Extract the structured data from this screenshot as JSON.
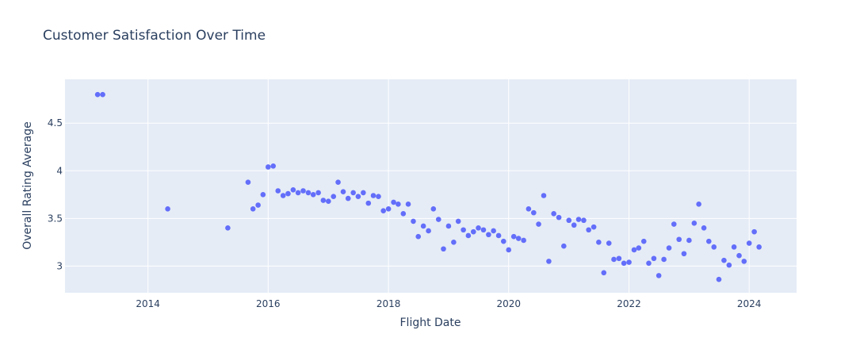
{
  "chart_data": {
    "type": "scatter",
    "title": "Customer Satisfaction Over Time",
    "xlabel": "Flight Date",
    "ylabel": "Overall Rating Average",
    "x_ticks": [
      "2014",
      "2016",
      "2018",
      "2020",
      "2022",
      "2024"
    ],
    "y_ticks": [
      "3",
      "3.5",
      "4",
      "4.5"
    ],
    "xlim": [
      "2012-08-15",
      "2024-10-15"
    ],
    "ylim": [
      2.72,
      4.96
    ],
    "grid": true,
    "legend": "none",
    "colors": {
      "marker": "#636efa",
      "plot_background": "#e5ecf6",
      "grid": "#ffffff",
      "text": "#2a3f5f"
    },
    "series": [
      {
        "x": [
          "2013-03",
          "2013-04",
          "2014-05",
          "2015-05",
          "2015-09",
          "2015-10",
          "2015-11",
          "2015-12",
          "2016-01",
          "2016-02",
          "2016-03",
          "2016-04",
          "2016-05",
          "2016-06",
          "2016-07",
          "2016-08",
          "2016-09",
          "2016-10",
          "2016-11",
          "2016-12",
          "2017-01",
          "2017-02",
          "2017-03",
          "2017-04",
          "2017-05",
          "2017-06",
          "2017-07",
          "2017-08",
          "2017-09",
          "2017-10",
          "2017-11",
          "2017-12",
          "2018-01",
          "2018-02",
          "2018-03",
          "2018-04",
          "2018-05",
          "2018-06",
          "2018-07",
          "2018-08",
          "2018-09",
          "2018-10",
          "2018-11",
          "2018-12",
          "2019-01",
          "2019-02",
          "2019-03",
          "2019-04",
          "2019-05",
          "2019-06",
          "2019-07",
          "2019-08",
          "2019-09",
          "2019-10",
          "2019-11",
          "2019-12",
          "2020-01",
          "2020-02",
          "2020-03",
          "2020-04",
          "2020-05",
          "2020-06",
          "2020-07",
          "2020-08",
          "2020-09",
          "2020-10",
          "2020-11",
          "2020-12",
          "2021-01",
          "2021-02",
          "2021-03",
          "2021-04",
          "2021-05",
          "2021-06",
          "2021-07",
          "2021-08",
          "2021-09",
          "2021-10",
          "2021-11",
          "2021-12",
          "2022-01",
          "2022-02",
          "2022-03",
          "2022-04",
          "2022-05",
          "2022-06",
          "2022-07",
          "2022-08",
          "2022-09",
          "2022-10",
          "2022-11",
          "2022-12",
          "2023-01",
          "2023-02",
          "2023-03",
          "2023-04",
          "2023-05",
          "2023-06",
          "2023-07",
          "2023-08",
          "2023-09",
          "2023-10",
          "2023-11",
          "2023-12",
          "2024-01",
          "2024-02",
          "2024-03"
        ],
        "y": [
          4.8,
          4.8,
          3.6,
          3.4,
          3.88,
          3.6,
          3.64,
          3.75,
          4.04,
          4.05,
          3.79,
          3.74,
          3.76,
          3.8,
          3.77,
          3.79,
          3.77,
          3.75,
          3.77,
          3.69,
          3.68,
          3.73,
          3.88,
          3.78,
          3.71,
          3.77,
          3.73,
          3.77,
          3.66,
          3.74,
          3.73,
          3.58,
          3.6,
          3.67,
          3.65,
          3.55,
          3.65,
          3.47,
          3.31,
          3.42,
          3.37,
          3.6,
          3.49,
          3.18,
          3.42,
          3.25,
          3.47,
          3.38,
          3.32,
          3.36,
          3.4,
          3.38,
          3.33,
          3.37,
          3.32,
          3.26,
          3.17,
          3.31,
          3.29,
          3.27,
          3.6,
          3.56,
          3.44,
          3.74,
          3.05,
          3.55,
          3.51,
          3.21,
          3.48,
          3.43,
          3.49,
          3.48,
          3.38,
          3.41,
          3.25,
          2.93,
          3.24,
          3.07,
          3.08,
          3.03,
          3.04,
          3.17,
          3.19,
          3.26,
          3.03,
          3.08,
          2.9,
          3.07,
          3.19,
          3.44,
          3.28,
          3.13,
          3.27,
          3.45,
          3.65,
          3.4,
          3.26,
          3.2,
          2.86,
          3.06,
          3.01,
          3.2,
          3.11,
          3.05,
          3.24,
          3.36,
          3.2
        ]
      }
    ]
  }
}
